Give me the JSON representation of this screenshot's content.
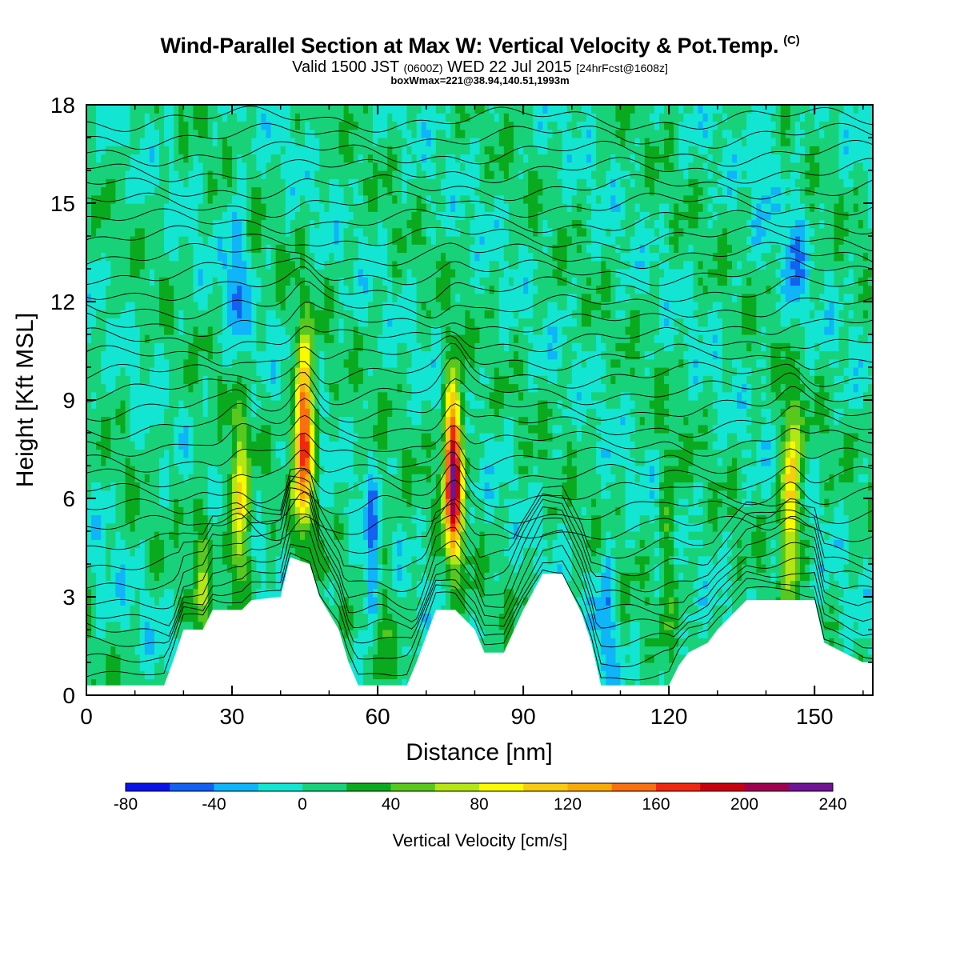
{
  "header": {
    "title": "Wind-Parallel Section at Max W: Vertical Velocity & Pot.Temp.",
    "title_mark": "(C)",
    "subtitle_a": "Valid 1500 JST",
    "subtitle_b": "(0600Z)",
    "subtitle_c": "WED 22 Jul 2015",
    "subtitle_d": "[24hrFcst@1608z]",
    "boxline": "boxWmax=221@38.94,140.51,1993m"
  },
  "chart_data": {
    "type": "heatmap",
    "xlabel": "Distance [nm]",
    "ylabel": "Height [Kft MSL]",
    "xlim": [
      0,
      162
    ],
    "ylim": [
      0,
      18
    ],
    "x_ticks": [
      "0",
      "30",
      "60",
      "90",
      "120",
      "150"
    ],
    "y_ticks": [
      "0",
      "3",
      "6",
      "9",
      "12",
      "15",
      "18"
    ],
    "colorbar": {
      "label": "Vertical Velocity [cm/s]",
      "tick_labels": [
        "-80",
        "-40",
        "0",
        "40",
        "80",
        "120",
        "160",
        "200",
        "240"
      ],
      "levels": [
        -80,
        -60,
        -40,
        -20,
        0,
        20,
        40,
        60,
        80,
        100,
        120,
        140,
        160,
        180,
        200,
        220,
        240
      ],
      "colors": [
        "#0a14e8",
        "#1460f0",
        "#10b4f8",
        "#12e6d2",
        "#18d27a",
        "#0aaa1e",
        "#58c81e",
        "#b4e614",
        "#fafa00",
        "#f8cc10",
        "#f8aa08",
        "#f87010",
        "#f02810",
        "#c80010",
        "#a00050",
        "#6e1494"
      ]
    },
    "background_w": 5,
    "updrafts": [
      {
        "x": 31.5,
        "z": 5.6,
        "w": 100
      },
      {
        "x": 44.8,
        "z": 8.0,
        "w": 185
      },
      {
        "x": 75.6,
        "z": 6.8,
        "w": 215
      },
      {
        "x": 145.2,
        "z": 6.2,
        "w": 120
      },
      {
        "x": 24.0,
        "z": 3.8,
        "w": 40
      },
      {
        "x": 60.5,
        "z": 3.0,
        "w": 40
      },
      {
        "x": 120.0,
        "z": 5.0,
        "w": 35
      }
    ],
    "downdrafts": [
      {
        "x": 31.0,
        "z": 13.0,
        "w": -45
      },
      {
        "x": 59.0,
        "z": 3.8,
        "w": -65
      },
      {
        "x": 107.0,
        "z": 2.5,
        "w": -40
      },
      {
        "x": 146.0,
        "z": 13.5,
        "w": -40
      },
      {
        "x": 140.0,
        "z": 17.0,
        "w": -30
      }
    ],
    "terrain_kft": [
      {
        "x": 0,
        "z": 0.3
      },
      {
        "x": 16,
        "z": 0.3
      },
      {
        "x": 18,
        "z": 1.1
      },
      {
        "x": 20,
        "z": 2.0
      },
      {
        "x": 24,
        "z": 2.0
      },
      {
        "x": 26,
        "z": 2.6
      },
      {
        "x": 32,
        "z": 2.6
      },
      {
        "x": 34,
        "z": 2.9
      },
      {
        "x": 40,
        "z": 3.0
      },
      {
        "x": 42,
        "z": 4.2
      },
      {
        "x": 46,
        "z": 4.0
      },
      {
        "x": 48,
        "z": 3.0
      },
      {
        "x": 52,
        "z": 2.0
      },
      {
        "x": 54,
        "z": 1.0
      },
      {
        "x": 56,
        "z": 0.3
      },
      {
        "x": 66,
        "z": 0.3
      },
      {
        "x": 68,
        "z": 1.0
      },
      {
        "x": 70,
        "z": 1.8
      },
      {
        "x": 72,
        "z": 2.6
      },
      {
        "x": 76,
        "z": 2.6
      },
      {
        "x": 80,
        "z": 2.0
      },
      {
        "x": 82,
        "z": 1.3
      },
      {
        "x": 86,
        "z": 1.3
      },
      {
        "x": 90,
        "z": 2.6
      },
      {
        "x": 94,
        "z": 3.7
      },
      {
        "x": 98,
        "z": 3.7
      },
      {
        "x": 102,
        "z": 2.5
      },
      {
        "x": 104,
        "z": 1.6
      },
      {
        "x": 106,
        "z": 0.3
      },
      {
        "x": 120,
        "z": 0.3
      },
      {
        "x": 122,
        "z": 0.9
      },
      {
        "x": 124,
        "z": 1.3
      },
      {
        "x": 128,
        "z": 1.6
      },
      {
        "x": 130,
        "z": 2.0
      },
      {
        "x": 132,
        "z": 2.3
      },
      {
        "x": 134,
        "z": 2.6
      },
      {
        "x": 136,
        "z": 2.9
      },
      {
        "x": 150,
        "z": 2.9
      },
      {
        "x": 152,
        "z": 1.6
      },
      {
        "x": 156,
        "z": 1.3
      },
      {
        "x": 160,
        "z": 1.0
      },
      {
        "x": 162,
        "z": 1.0
      }
    ],
    "theta_contours": {
      "count": 34,
      "z_base": 0.4,
      "spacing_kft": 0.52
    }
  }
}
